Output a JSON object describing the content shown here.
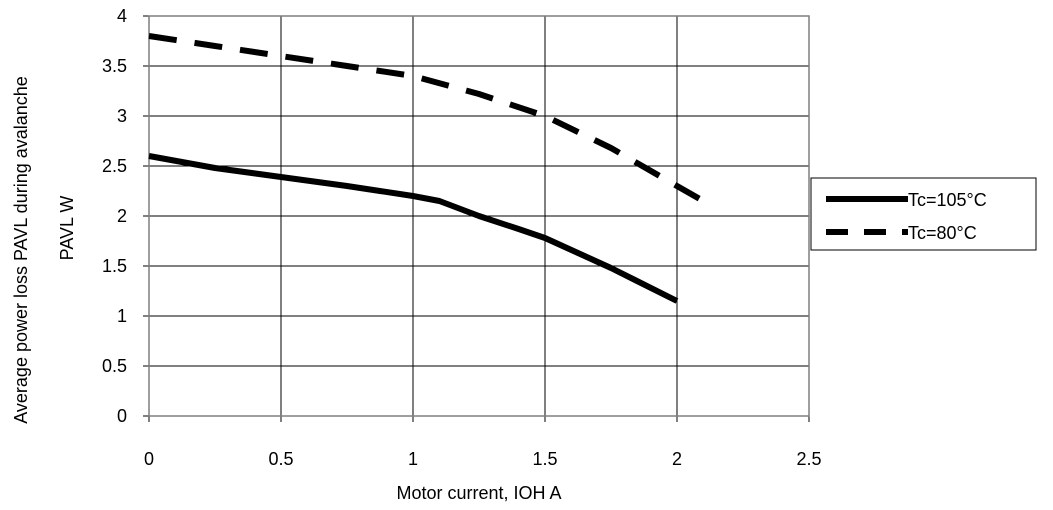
{
  "chart_data": {
    "type": "line",
    "title": "",
    "xlabel": "Motor current, IOH A",
    "ylabel_line1": "Average power loss PAVL during avalanche",
    "ylabel_line2": "PAVL W",
    "xlim": [
      0,
      2.5
    ],
    "ylim": [
      0,
      4
    ],
    "xticks": [
      "0",
      "0.5",
      "1",
      "1.5",
      "2",
      "2.5"
    ],
    "yticks": [
      "0",
      "0.5",
      "1",
      "1.5",
      "2",
      "2.5",
      "3",
      "3.5",
      "4"
    ],
    "grid": true,
    "legend_position": "right",
    "series": [
      {
        "name": "Tc=105°C",
        "style": "solid",
        "color": "#000000",
        "x": [
          0,
          0.25,
          0.5,
          0.75,
          1.0,
          1.1,
          1.25,
          1.4,
          1.5,
          1.75,
          2.0
        ],
        "y": [
          2.6,
          2.48,
          2.39,
          2.3,
          2.2,
          2.15,
          2.0,
          1.87,
          1.78,
          1.48,
          1.15
        ]
      },
      {
        "name": "Tc=80°C",
        "style": "dashed",
        "color": "#000000",
        "x": [
          0,
          0.25,
          0.5,
          0.75,
          1.0,
          1.25,
          1.5,
          1.75,
          2.0,
          2.1
        ],
        "y": [
          3.8,
          3.7,
          3.6,
          3.5,
          3.4,
          3.22,
          3.0,
          2.68,
          2.3,
          2.15
        ]
      }
    ]
  }
}
